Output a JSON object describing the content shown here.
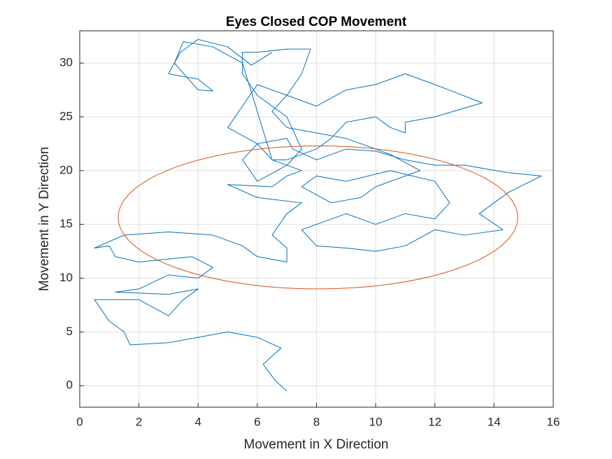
{
  "chart_data": {
    "type": "line",
    "title": "Eyes Closed COP Movement",
    "x_label": "Movement in X Direction",
    "y_label": "Movement in Y Direction",
    "xlim": [
      0,
      16
    ],
    "ylim": [
      -2,
      33
    ],
    "xticks": [
      0,
      2,
      4,
      6,
      8,
      10,
      12,
      14,
      16
    ],
    "yticks": [
      0,
      5,
      10,
      15,
      20,
      25,
      30
    ],
    "grid": true,
    "series": [
      {
        "color": "#0072bd",
        "x": [
          7.0,
          6.6,
          6.2,
          6.8,
          6.0,
          5.0,
          4.0,
          3.0,
          1.7,
          1.5,
          1.0,
          0.5,
          2.0,
          3.0,
          3.5,
          4.0,
          3.0,
          1.2,
          2.0,
          3.0,
          4.0,
          4.5,
          3.8,
          2.0,
          1.2,
          1.0,
          0.5,
          1.5,
          3.0,
          4.5,
          5.5,
          6.0,
          7.0,
          7.0,
          6.5,
          7.0,
          7.5,
          6.0,
          5.0,
          6.5,
          7.0,
          7.5,
          6.5,
          6.0,
          7.0,
          7.2,
          8.0,
          9.0,
          10.0,
          11.0,
          12.0,
          13.0,
          14.5,
          15.6,
          14.5,
          14.0,
          13.5,
          14.3,
          13.0,
          12.0,
          11.0,
          10.0,
          9.0,
          8.0,
          7.5,
          8.0,
          9.0,
          10.0,
          11.0,
          12.0,
          12.5,
          12.0,
          10.5,
          9.0,
          8.0,
          7.5,
          8.5,
          9.5,
          10.0,
          11.0,
          11.5,
          10.5,
          9.0,
          8.0,
          7.0,
          6.5,
          7.0,
          6.0,
          5.5,
          5.0,
          6.0,
          5.5,
          6.0,
          7.0,
          7.5,
          7.0,
          6.0,
          5.5,
          5.5,
          6.0,
          7.0,
          7.8,
          7.5,
          7.0,
          8.0,
          9.0,
          10.0,
          11.0,
          12.0,
          13.6,
          12.0,
          11.0,
          11.0,
          10.5,
          10.0,
          9.0,
          8.5,
          8.0,
          7.0,
          6.5,
          5.5,
          4.5,
          3.5,
          3.2,
          4.0,
          4.5,
          4.0,
          3.0,
          3.4,
          4.0,
          5.0,
          5.8,
          6.5
        ],
        "y": [
          -0.5,
          0.5,
          2.0,
          3.5,
          4.5,
          5.0,
          4.5,
          4.0,
          3.8,
          5.0,
          6.0,
          8.0,
          8.0,
          6.5,
          8.0,
          9.0,
          8.5,
          8.7,
          9.0,
          10.3,
          10.0,
          11.0,
          12.0,
          11.5,
          12.0,
          13.0,
          12.8,
          14.0,
          14.3,
          14.0,
          13.0,
          12.0,
          11.5,
          12.8,
          14.0,
          16.0,
          17.0,
          17.5,
          18.7,
          18.5,
          19.5,
          20.0,
          21.0,
          22.5,
          23.0,
          22.0,
          21.0,
          22.0,
          21.8,
          21.0,
          20.5,
          20.5,
          19.8,
          19.5,
          18.0,
          17.0,
          16.0,
          14.5,
          14.0,
          14.5,
          13.0,
          12.5,
          12.8,
          13.0,
          14.5,
          15.0,
          16.0,
          15.0,
          16.0,
          15.5,
          17.0,
          19.0,
          20.0,
          19.0,
          19.5,
          18.5,
          17.0,
          17.5,
          18.5,
          19.5,
          20.0,
          21.5,
          23.0,
          23.5,
          24.0,
          25.5,
          27.0,
          28.0,
          26.0,
          24.0,
          22.5,
          21.0,
          19.0,
          20.5,
          22.0,
          25.0,
          27.0,
          29.0,
          31.0,
          31.0,
          31.3,
          31.3,
          29.0,
          27.0,
          26.0,
          27.5,
          28.0,
          29.0,
          28.0,
          26.3,
          25.0,
          24.5,
          23.5,
          24.0,
          25.0,
          24.5,
          23.0,
          22.0,
          21.0,
          21.0,
          30.0,
          31.5,
          32.0,
          30.0,
          27.5,
          27.4,
          28.5,
          29.0,
          31.0,
          32.2,
          31.5,
          29.8,
          31.0
        ]
      },
      {
        "type": "ellipse",
        "color": "#d95319",
        "center": [
          8.05,
          15.65
        ],
        "radii": [
          6.75,
          6.65
        ]
      }
    ]
  }
}
